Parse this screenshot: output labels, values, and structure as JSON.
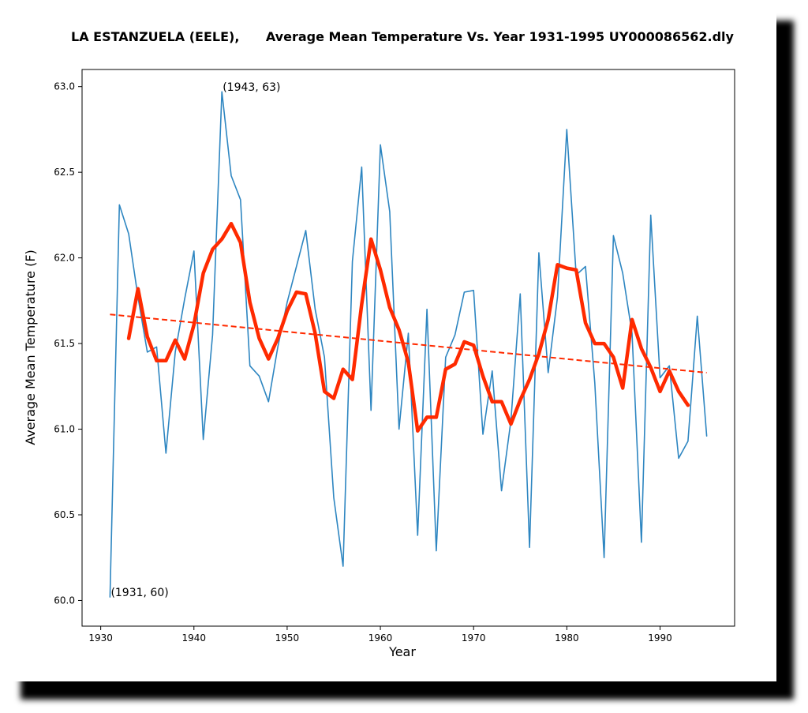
{
  "chart_data": {
    "type": "line",
    "title": "LA ESTANZUELA (EELE),      Average Mean Temperature Vs. Year 1931-1995 UY000086562.dly",
    "xlabel": "Year",
    "ylabel": "Average Mean Temperature (F)",
    "xlim": [
      1928,
      1998
    ],
    "ylim": [
      59.85,
      63.1
    ],
    "xticks": [
      1930,
      1940,
      1950,
      1960,
      1970,
      1980,
      1990
    ],
    "yticks": [
      60.0,
      60.5,
      61.0,
      61.5,
      62.0,
      62.5,
      63.0
    ],
    "ytick_labels": [
      "60.0",
      "60.5",
      "61.0",
      "61.5",
      "62.0",
      "62.5",
      "63.0"
    ],
    "colors": {
      "raw": "#2e86c1",
      "smooth": "#ff2a00",
      "trend": "#ff2a00"
    },
    "series": [
      {
        "style": "raw",
        "x": [
          1931,
          1932,
          1933,
          1934,
          1935,
          1936,
          1937,
          1938,
          1939,
          1940,
          1941,
          1942,
          1943,
          1944,
          1945,
          1946,
          1947,
          1948,
          1949,
          1950,
          1951,
          1952,
          1953,
          1954,
          1955,
          1956,
          1957,
          1958,
          1959,
          1960,
          1961,
          1962,
          1963,
          1964,
          1965,
          1966,
          1967,
          1968,
          1969,
          1970,
          1971,
          1972,
          1973,
          1974,
          1975,
          1976,
          1977,
          1978,
          1979,
          1980,
          1981,
          1982,
          1983,
          1984,
          1985,
          1986,
          1987,
          1988,
          1989,
          1990,
          1991,
          1992,
          1993,
          1994,
          1995
        ],
        "y": [
          60.02,
          62.31,
          62.14,
          61.77,
          61.45,
          61.48,
          60.86,
          61.45,
          61.76,
          62.04,
          60.94,
          61.55,
          62.97,
          62.48,
          62.34,
          61.37,
          61.31,
          61.16,
          61.48,
          61.74,
          61.95,
          62.16,
          61.7,
          61.42,
          60.6,
          60.2,
          61.98,
          62.53,
          61.11,
          62.66,
          62.27,
          61.0,
          61.56,
          60.38,
          61.7,
          60.29,
          61.42,
          61.55,
          61.8,
          61.81,
          60.97,
          61.34,
          60.64,
          61.05,
          61.79,
          60.31,
          62.03,
          61.33,
          61.77,
          62.75,
          61.9,
          61.95,
          61.27,
          60.25,
          62.13,
          61.91,
          61.56,
          60.34,
          62.25,
          61.3,
          61.37,
          60.83,
          60.93,
          61.66,
          60.96
        ]
      },
      {
        "style": "smooth",
        "x": [
          1933,
          1934,
          1935,
          1936,
          1937,
          1938,
          1939,
          1940,
          1941,
          1942,
          1943,
          1944,
          1945,
          1946,
          1947,
          1948,
          1949,
          1950,
          1951,
          1952,
          1953,
          1954,
          1955,
          1956,
          1957,
          1958,
          1959,
          1960,
          1961,
          1962,
          1963,
          1964,
          1965,
          1966,
          1967,
          1968,
          1969,
          1970,
          1971,
          1972,
          1973,
          1974,
          1975,
          1976,
          1977,
          1978,
          1979,
          1980,
          1981,
          1982,
          1983,
          1984,
          1985,
          1986,
          1987,
          1988,
          1989,
          1990,
          1991,
          1992,
          1993
        ],
        "y": [
          61.53,
          61.82,
          61.54,
          61.4,
          61.4,
          61.52,
          61.41,
          61.61,
          61.91,
          62.05,
          62.11,
          62.2,
          62.09,
          61.74,
          61.53,
          61.41,
          61.53,
          61.69,
          61.8,
          61.79,
          61.56,
          61.22,
          61.18,
          61.35,
          61.29,
          61.73,
          62.11,
          61.93,
          61.71,
          61.58,
          61.39,
          60.99,
          61.07,
          61.07,
          61.35,
          61.38,
          61.51,
          61.49,
          61.31,
          61.16,
          61.16,
          61.03,
          61.17,
          61.29,
          61.44,
          61.64,
          61.96,
          61.94,
          61.93,
          61.62,
          61.5,
          61.5,
          61.42,
          61.24,
          61.64,
          61.47,
          61.36,
          61.22,
          61.34,
          61.22,
          61.14
        ]
      },
      {
        "style": "trend",
        "x": [
          1931,
          1995
        ],
        "y": [
          61.67,
          61.33
        ]
      }
    ],
    "annotations": [
      {
        "text": "(1943, 63)",
        "x": 1943,
        "y": 62.97
      },
      {
        "text": "(1931, 60)",
        "x": 1931,
        "y": 60.02
      }
    ]
  }
}
